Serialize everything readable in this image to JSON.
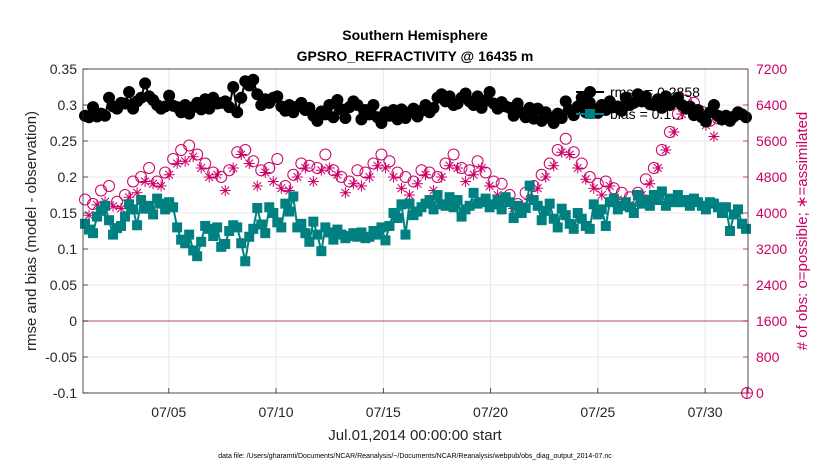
{
  "chart_data": {
    "type": "line",
    "title": "Southern Hemisphere",
    "subtitle": "GPSRO_REFRACTIVITY @ 16435 m",
    "xlabel": "Jul.01,2014 00:00:00 start",
    "ylabel_left": "rmse and bias (model - observation)",
    "ylabel_right": "# of obs: o=possible; ∗=assimilated",
    "footnote": "data file: /Users/gharamti/Documents/NCAR/Reanalysis/~/Documents/NCAR/Reanalysis/webpub/obs_diag_output_2014-07.nc",
    "x_ticks": [
      "07/05",
      "07/10",
      "07/15",
      "07/20",
      "07/25",
      "07/30"
    ],
    "x_tick_days": [
      5,
      10,
      15,
      20,
      25,
      30
    ],
    "xlim_days": [
      1,
      32
    ],
    "ylim_left": [
      -0.1,
      0.35
    ],
    "y_ticks_left": [
      "-0.1",
      "-0.05",
      "0",
      "0.05",
      "0.1",
      "0.15",
      "0.2",
      "0.25",
      "0.3",
      "0.35"
    ],
    "ylim_right": [
      0,
      7200
    ],
    "y_ticks_right": [
      "0",
      "800",
      "1600",
      "2400",
      "3200",
      "4000",
      "4800",
      "5600",
      "6400",
      "7200"
    ],
    "grid": true,
    "legend_position": "top-right",
    "colors": {
      "rmse": "#000000",
      "bias": "#008080",
      "obs": "#cc0066",
      "zero_line": "#c07090"
    },
    "series": [
      {
        "name": "rmse = 0.2858",
        "axis": "left",
        "values": [
          0.285,
          0.283,
          0.297,
          0.284,
          0.288,
          0.285,
          0.31,
          0.298,
          0.295,
          0.303,
          0.302,
          0.318,
          0.295,
          0.305,
          0.31,
          0.33,
          0.312,
          0.307,
          0.3,
          0.295,
          0.298,
          0.313,
          0.299,
          0.297,
          0.29,
          0.3,
          0.288,
          0.297,
          0.303,
          0.294,
          0.308,
          0.295,
          0.31,
          0.302,
          0.303,
          0.305,
          0.297,
          0.325,
          0.29,
          0.31,
          0.333,
          0.327,
          0.335,
          0.315,
          0.3,
          0.308,
          0.303,
          0.31,
          0.312,
          0.298,
          0.292,
          0.3,
          0.29,
          0.298,
          0.303,
          0.293,
          0.296,
          0.285,
          0.278,
          0.291,
          0.287,
          0.3,
          0.283,
          0.307,
          0.294,
          0.282,
          0.297,
          0.305,
          0.3,
          0.28,
          0.293,
          0.287,
          0.3,
          0.283,
          0.275,
          0.29,
          0.285,
          0.293,
          0.28,
          0.294,
          0.282,
          0.29,
          0.295,
          0.284,
          0.292,
          0.3,
          0.29,
          0.296,
          0.31,
          0.315,
          0.305,
          0.312,
          0.3,
          0.302,
          0.31,
          0.316,
          0.305,
          0.3,
          0.312,
          0.296,
          0.306,
          0.318,
          0.302,
          0.295,
          0.304,
          0.298,
          0.296,
          0.285,
          0.302,
          0.29,
          0.283,
          0.296,
          0.281,
          0.295,
          0.278,
          0.29,
          0.282,
          0.275,
          0.288,
          0.282,
          0.305,
          0.293,
          0.286,
          0.298,
          0.31,
          0.29,
          0.303,
          0.294,
          0.289,
          0.3,
          0.293,
          0.305,
          0.297,
          0.298,
          0.292,
          0.31,
          0.3,
          0.303,
          0.315,
          0.305,
          0.312,
          0.301,
          0.3,
          0.308,
          0.296,
          0.312,
          0.3,
          0.305,
          0.31,
          0.3,
          0.295,
          0.298,
          0.286,
          0.293,
          0.283,
          0.277,
          0.29,
          0.3,
          0.285,
          0.28,
          0.285,
          0.278,
          0.284,
          0.29,
          0.287,
          0.283
        ]
      },
      {
        "name": "bias = 0.1…",
        "axis": "left",
        "values": [
          0.135,
          0.127,
          0.122,
          0.145,
          0.153,
          0.16,
          0.14,
          0.12,
          0.129,
          0.132,
          0.145,
          0.162,
          0.155,
          0.133,
          0.168,
          0.156,
          0.16,
          0.148,
          0.17,
          0.163,
          0.155,
          0.165,
          0.158,
          0.13,
          0.113,
          0.108,
          0.12,
          0.098,
          0.09,
          0.11,
          0.132,
          0.128,
          0.118,
          0.13,
          0.103,
          0.107,
          0.125,
          0.133,
          0.13,
          0.108,
          0.083,
          0.117,
          0.128,
          0.157,
          0.134,
          0.122,
          0.158,
          0.15,
          0.137,
          0.13,
          0.163,
          0.152,
          0.173,
          0.13,
          0.135,
          0.122,
          0.11,
          0.138,
          0.12,
          0.097,
          0.13,
          0.123,
          0.113,
          0.127,
          0.12,
          0.115,
          0.118,
          0.122,
          0.117,
          0.123,
          0.115,
          0.117,
          0.125,
          0.12,
          0.13,
          0.112,
          0.132,
          0.15,
          0.143,
          0.162,
          0.12,
          0.163,
          0.147,
          0.152,
          0.158,
          0.163,
          0.168,
          0.155,
          0.175,
          0.162,
          0.16,
          0.172,
          0.158,
          0.168,
          0.145,
          0.155,
          0.16,
          0.178,
          0.163,
          0.165,
          0.17,
          0.158,
          0.162,
          0.168,
          0.155,
          0.172,
          0.165,
          0.143,
          0.16,
          0.15,
          0.157,
          0.188,
          0.168,
          0.16,
          0.14,
          0.153,
          0.163,
          0.142,
          0.13,
          0.156,
          0.147,
          0.135,
          0.128,
          0.15,
          0.142,
          0.132,
          0.128,
          0.162,
          0.148,
          0.155,
          0.132,
          0.165,
          0.17,
          0.155,
          0.16,
          0.165,
          0.158,
          0.15,
          0.175,
          0.163,
          0.168,
          0.16,
          0.175,
          0.168,
          0.18,
          0.16,
          0.17,
          0.165,
          0.175,
          0.165,
          0.168,
          0.16,
          0.17,
          0.165,
          0.16,
          0.155,
          0.165,
          0.163,
          0.158,
          0.15,
          0.158,
          0.125,
          0.148,
          0.155,
          0.135,
          0.128
        ]
      },
      {
        "name": "possible",
        "axis": "right",
        "values": [
          4300,
          4150,
          4200,
          4380,
          4500,
          4450,
          4600,
          4350,
          4250,
          4300,
          4400,
          4550,
          4700,
          4650,
          4800,
          4900,
          5000,
          4850,
          4700,
          4800,
          4900,
          5050,
          5200,
          5300,
          5400,
          5350,
          5500,
          5450,
          5300,
          5200,
          5100,
          5000,
          4900,
          5050,
          4800,
          4700,
          4950,
          5200,
          5350,
          5500,
          5400,
          5300,
          5150,
          4800,
          4950,
          5100,
          5000,
          4900,
          5200,
          4750,
          4600,
          4700,
          4850,
          5000,
          5100,
          5200,
          5050,
          4900,
          5000,
          5150,
          5300,
          5200,
          4950,
          5050,
          4800,
          4650,
          4700,
          4850,
          4950,
          4800,
          4900,
          5000,
          5100,
          5250,
          5300,
          5200,
          5150,
          5000,
          4900,
          4750,
          4800,
          4600,
          4700,
          4850,
          4950,
          5050,
          4900,
          4700,
          4800,
          5000,
          5100,
          5250,
          5300,
          5200,
          5000,
          4900,
          4950,
          5050,
          5150,
          5200,
          4900,
          4800,
          4700,
          4600,
          4650,
          4500,
          4400,
          4300,
          4200,
          4350,
          4450,
          4500,
          4600,
          4750,
          4850,
          5000,
          5100,
          5250,
          5400,
          5550,
          5650,
          5500,
          5350,
          5200,
          5100,
          4950,
          4800,
          4750,
          4650,
          4600,
          4700,
          4800,
          4550,
          4500,
          4450,
          4400,
          4350,
          4300,
          4450,
          4600,
          4750,
          4850,
          5000,
          5200,
          5400,
          5600,
          5800,
          6000,
          6200,
          6400,
          6500,
          6550,
          6450,
          6350,
          6250,
          6150,
          6050,
          5900,
          6100,
          6250
        ]
      },
      {
        "name": "assimilated",
        "axis": "right",
        "values": [
          4100,
          3950,
          4000,
          4180,
          4300,
          4250,
          4400,
          4150,
          4050,
          4100,
          4200,
          4350,
          4500,
          4450,
          4600,
          4700,
          4800,
          4650,
          4500,
          4600,
          4700,
          4850,
          5000,
          5100,
          5200,
          5150,
          5300,
          5250,
          5100,
          5000,
          4900,
          4800,
          4700,
          4850,
          4600,
          4500,
          4750,
          5000,
          5150,
          5300,
          5200,
          5100,
          4950,
          4600,
          4750,
          4900,
          4800,
          4700,
          5000,
          4550,
          4400,
          4500,
          4650,
          4800,
          4900,
          5000,
          4850,
          4700,
          4800,
          4950,
          5100,
          5000,
          4750,
          4850,
          4600,
          4450,
          4500,
          4650,
          4750,
          4600,
          4700,
          4800,
          4900,
          5050,
          5100,
          5000,
          4950,
          4800,
          4700,
          4550,
          4600,
          4400,
          4500,
          4650,
          4750,
          4850,
          4700,
          4500,
          4600,
          4800,
          4900,
          5050,
          5100,
          5000,
          4800,
          4700,
          4750,
          4850,
          4950,
          5000,
          4700,
          4600,
          4500,
          4400,
          4450,
          4300,
          4200,
          4100,
          4000,
          4150,
          4250,
          4300,
          4400,
          4550,
          4650,
          4800,
          4900,
          5050,
          5200,
          5350,
          5450,
          5300,
          5150,
          5000,
          4900,
          4750,
          4600,
          4550,
          4450,
          4400,
          4500,
          4600,
          4350,
          4300,
          4250,
          4200,
          4150,
          4100,
          4250,
          4400,
          4550,
          4650,
          4800,
          5000,
          5200,
          5400,
          5600,
          5800,
          6000,
          6200,
          6300,
          6350,
          6250,
          6150,
          6050,
          5950,
          5850,
          5700,
          5900,
          6050
        ]
      }
    ]
  }
}
